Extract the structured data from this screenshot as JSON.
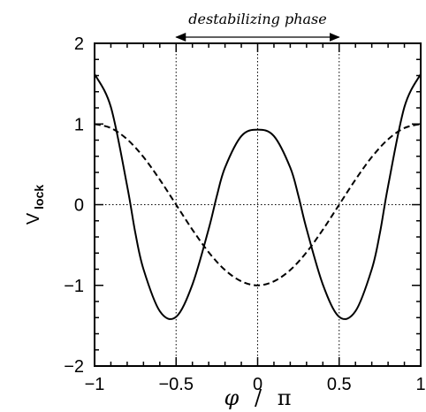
{
  "chart_data": {
    "type": "line",
    "title": "",
    "annotation": "destabilizing phase",
    "xlabel": {
      "symbol": "φ",
      "slash": "/",
      "denominator": "π"
    },
    "ylabel": {
      "main": "V",
      "sub": "lock"
    },
    "xlim": [
      -1,
      1
    ],
    "ylim": [
      -2,
      2
    ],
    "x_ticks": [
      "-1",
      "-0.5",
      "0",
      "0.5",
      "1"
    ],
    "y_ticks": [
      "-2",
      "-1",
      "0",
      "1",
      "2"
    ],
    "reference_lines": {
      "vertical": [
        -0.5,
        0,
        0.5
      ],
      "horizontal": [
        0
      ],
      "style": "dotted"
    },
    "arrow_span": [
      -0.5,
      0.5
    ],
    "series": [
      {
        "style": "solid",
        "x": [
          -1,
          -0.9,
          -0.8,
          -0.75,
          -0.7,
          -0.6,
          -0.5,
          -0.4,
          -0.3,
          -0.25,
          -0.2,
          -0.1,
          0,
          0.1,
          0.2,
          0.25,
          0.3,
          0.4,
          0.5,
          0.6,
          0.7,
          0.75,
          0.8,
          0.9,
          1
        ],
        "y": [
          1.62,
          1.21,
          0.23,
          -0.35,
          -0.8,
          -1.32,
          -1.39,
          -0.99,
          -0.3,
          0.11,
          0.46,
          0.85,
          0.93,
          0.85,
          0.46,
          0.11,
          -0.3,
          -0.99,
          -1.39,
          -1.32,
          -0.8,
          -0.35,
          0.23,
          1.21,
          1.62
        ]
      },
      {
        "style": "dashed",
        "x": [
          -1,
          -0.9,
          -0.8,
          -0.7,
          -0.6,
          -0.5,
          -0.4,
          -0.3,
          -0.2,
          -0.1,
          0,
          0.1,
          0.2,
          0.3,
          0.4,
          0.5,
          0.6,
          0.7,
          0.8,
          0.9,
          1
        ],
        "y": [
          1.0,
          0.95,
          0.81,
          0.59,
          0.31,
          0.0,
          -0.31,
          -0.59,
          -0.81,
          -0.95,
          -1.0,
          -0.95,
          -0.81,
          -0.59,
          -0.31,
          0.0,
          0.31,
          0.59,
          0.81,
          0.95,
          1.0
        ]
      }
    ]
  }
}
